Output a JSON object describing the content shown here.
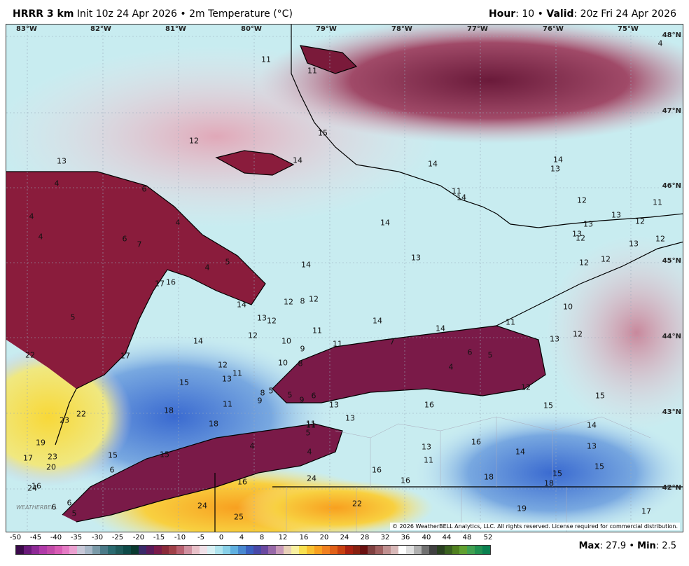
{
  "header": {
    "model": "HRRR 3 km",
    "init": "Init 10z 24 Apr 2026",
    "sep1": "•",
    "field": "2m Temperature (°C)",
    "hour_label": "Hour",
    "hour_value": ": 10",
    "sep2": "•",
    "valid_label": "Valid",
    "valid_value": ": 20z Fri 24 Apr 2026"
  },
  "map": {
    "longitude_labels": [
      "83°W",
      "82°W",
      "81°W",
      "80°W",
      "79°W",
      "78°W",
      "77°W",
      "76°W",
      "75°W"
    ],
    "latitude_labels": [
      "48°N",
      "47°N",
      "46°N",
      "45°N",
      "44°N",
      "43°N",
      "42°N"
    ],
    "point_values": [
      {
        "v": "11"
      },
      {
        "v": "11"
      },
      {
        "v": "4"
      },
      {
        "v": "12"
      },
      {
        "v": "13"
      },
      {
        "v": "15"
      },
      {
        "v": "14"
      },
      {
        "v": "14"
      },
      {
        "v": "13"
      },
      {
        "v": "14"
      },
      {
        "v": "4"
      },
      {
        "v": "6"
      },
      {
        "v": "11"
      },
      {
        "v": "14"
      },
      {
        "v": "12"
      },
      {
        "v": "11"
      },
      {
        "v": "4"
      },
      {
        "v": "4"
      },
      {
        "v": "14"
      },
      {
        "v": "13"
      },
      {
        "v": "13"
      },
      {
        "v": "12"
      },
      {
        "v": "4"
      },
      {
        "v": "6"
      },
      {
        "v": "7"
      },
      {
        "v": "5"
      },
      {
        "v": "4"
      },
      {
        "v": "12"
      },
      {
        "v": "13"
      },
      {
        "v": "13"
      },
      {
        "v": "14"
      },
      {
        "v": "13"
      },
      {
        "v": "12"
      },
      {
        "v": "17"
      },
      {
        "v": "16"
      },
      {
        "v": "12"
      },
      {
        "v": "12"
      },
      {
        "v": "14"
      },
      {
        "v": "12"
      },
      {
        "v": "8"
      },
      {
        "v": "12"
      },
      {
        "v": "13"
      },
      {
        "v": "12"
      },
      {
        "v": "10"
      },
      {
        "v": "5"
      },
      {
        "v": "14"
      },
      {
        "v": "11"
      },
      {
        "v": "14"
      },
      {
        "v": "11"
      },
      {
        "v": "12"
      },
      {
        "v": "11"
      },
      {
        "v": "13"
      },
      {
        "v": "12"
      },
      {
        "v": "22"
      },
      {
        "v": "14"
      },
      {
        "v": "10"
      },
      {
        "v": "9"
      },
      {
        "v": "11"
      },
      {
        "v": "7"
      },
      {
        "v": "6"
      },
      {
        "v": "5"
      },
      {
        "v": "17"
      },
      {
        "v": "12"
      },
      {
        "v": "10"
      },
      {
        "v": "8"
      },
      {
        "v": "11"
      },
      {
        "v": "4"
      },
      {
        "v": "13"
      },
      {
        "v": "15"
      },
      {
        "v": "8"
      },
      {
        "v": "5"
      },
      {
        "v": "5"
      },
      {
        "v": "9"
      },
      {
        "v": "6"
      },
      {
        "v": "12"
      },
      {
        "v": "9"
      },
      {
        "v": "13"
      },
      {
        "v": "13"
      },
      {
        "v": "11"
      },
      {
        "v": "16"
      },
      {
        "v": "15"
      },
      {
        "v": "15"
      },
      {
        "v": "22"
      },
      {
        "v": "23"
      },
      {
        "v": "18"
      },
      {
        "v": "18"
      },
      {
        "v": "11"
      },
      {
        "v": "13"
      },
      {
        "v": "14"
      },
      {
        "v": "5"
      },
      {
        "v": "19"
      },
      {
        "v": "4"
      },
      {
        "v": "16"
      },
      {
        "v": "13"
      },
      {
        "v": "14"
      },
      {
        "v": "15"
      },
      {
        "v": "4"
      },
      {
        "v": "17"
      },
      {
        "v": "23"
      },
      {
        "v": "15"
      },
      {
        "v": "11"
      },
      {
        "v": "24"
      },
      {
        "v": "20"
      },
      {
        "v": "6"
      },
      {
        "v": "16"
      },
      {
        "v": "16"
      },
      {
        "v": "16"
      },
      {
        "v": "18"
      },
      {
        "v": "15"
      },
      {
        "v": "15"
      },
      {
        "v": "18"
      },
      {
        "v": "16"
      },
      {
        "v": "24"
      },
      {
        "v": "22"
      },
      {
        "v": "6"
      },
      {
        "v": "6"
      },
      {
        "v": "24"
      },
      {
        "v": "5"
      },
      {
        "v": "25"
      },
      {
        "v": "19"
      },
      {
        "v": "17"
      }
    ],
    "copyright": "© 2026 WeatherBELL Analytics, LLC. All rights reserved. License required for commercial distribution.",
    "logo_text": "WEATHERBELL"
  },
  "colorbar": {
    "ticks": [
      "-50",
      "-45",
      "-40",
      "-35",
      "-30",
      "-25",
      "-20",
      "-15",
      "-10",
      "-5",
      "0",
      "4",
      "8",
      "12",
      "16",
      "20",
      "24",
      "28",
      "32",
      "36",
      "40",
      "44",
      "48",
      "52"
    ],
    "colors": [
      "#3b0a4a",
      "#6a1a7a",
      "#8e2a96",
      "#b03aa8",
      "#c24aa8",
      "#d85cb4",
      "#e47ac4",
      "#eaa0d0",
      "#c8c8d8",
      "#a8b8c8",
      "#7a9aa8",
      "#4a7a88",
      "#2a6a70",
      "#1e5a5a",
      "#0e4a48",
      "#0a3a30",
      "#3a2a6a",
      "#5a1a5a",
      "#7a1a4a",
      "#8a2a3a",
      "#a04048",
      "#b86070",
      "#d090a0",
      "#e8c0c8",
      "#f0e0e8",
      "#d8f0f4",
      "#b0e4ee",
      "#88d0e8",
      "#60b0e0",
      "#4888d0",
      "#3a60c0",
      "#4848a8",
      "#6a48a0",
      "#9868a8",
      "#c898b8",
      "#e8d0b8",
      "#f8f0a0",
      "#f8e050",
      "#f8c030",
      "#f8a020",
      "#f08020",
      "#e06018",
      "#c84010",
      "#a82010",
      "#882010",
      "#6a1010",
      "#804040",
      "#a06060",
      "#c09090",
      "#d8b8b8",
      "#ffffff",
      "#e0e0e0",
      "#b0b0b0",
      "#707070",
      "#404040",
      "#2a4020",
      "#3a6020",
      "#508020",
      "#60a030",
      "#40a050",
      "#209050",
      "#0a8050"
    ]
  },
  "stats": {
    "max_label": "Max",
    "max_value": ": 27.9",
    "sep": "•",
    "min_label": "Min",
    "min_value": ": 2.5"
  }
}
